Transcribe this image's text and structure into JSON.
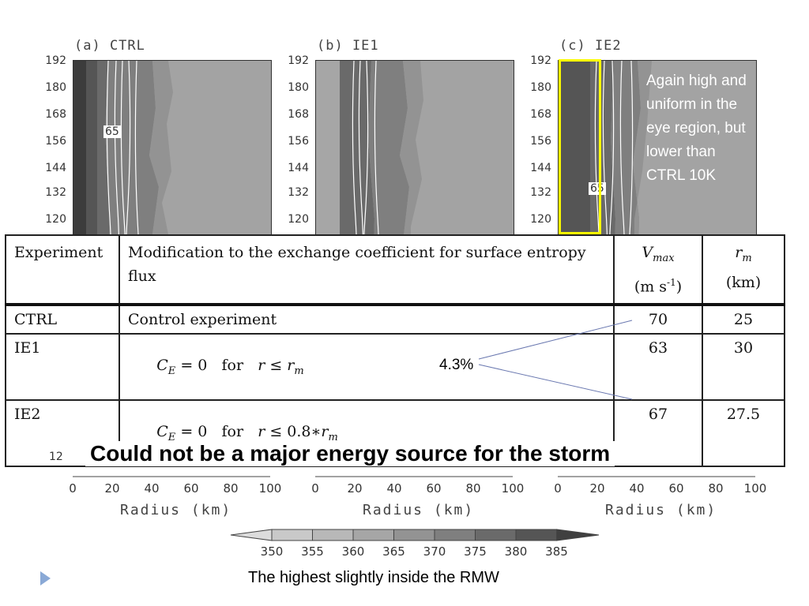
{
  "panels": [
    {
      "title": "(a) CTRL",
      "contour_label": "65"
    },
    {
      "title": "(b) IE1"
    },
    {
      "title": "(c) IE2",
      "contour_label": "65"
    }
  ],
  "y_ticks": [
    "192",
    "180",
    "168",
    "156",
    "144",
    "132",
    "120"
  ],
  "bottom_partial_tick": "12",
  "x_ticks": [
    "0",
    "20",
    "40",
    "60",
    "80",
    "100"
  ],
  "x_label": "Radius (km)",
  "callout": "Again high and uniform in the eye region, but lower than CTRL 10K",
  "table": {
    "headers": {
      "experiment": "Experiment",
      "modification_line1": "Modification to the exchange coefficient for surface entropy",
      "modification_line2": "flux",
      "vmax_symbol": "V",
      "vmax_sub": "max",
      "vmax_unit": "(m s",
      "vmax_unit_sup": "-1",
      "vmax_unit_end": ")",
      "rm_symbol": "r",
      "rm_sub": "m",
      "rm_unit": "(km)"
    },
    "rows": [
      {
        "experiment": "CTRL",
        "modification": "Control experiment",
        "vmax": "70",
        "rm": "25"
      },
      {
        "experiment": "IE1",
        "ce": "C",
        "ce_sub": "E",
        "mod_eq": " = 0   for   ",
        "mod_var": "r",
        "mod_op": " ≤ ",
        "mod_rhs": "r",
        "mod_rhs_sub": "m",
        "vmax": "63",
        "rm": "30"
      },
      {
        "experiment": "IE2",
        "ce": "C",
        "ce_sub": "E",
        "mod_eq": " = 0   for   ",
        "mod_var": "r",
        "mod_op": " ≤ 0.8∗",
        "mod_rhs": "r",
        "mod_rhs_sub": "m",
        "vmax": "67",
        "rm": "27.5"
      }
    ]
  },
  "percent_annotation": "4.3%",
  "headline": "Could not be a major energy source for the storm",
  "colorbar": {
    "labels": [
      "350",
      "355",
      "360",
      "365",
      "370",
      "375",
      "380",
      "385"
    ],
    "colors": [
      "#c9c9c9",
      "#b8b8b8",
      "#a6a6a6",
      "#939393",
      "#7f7f7f",
      "#6a6a6a",
      "#555555",
      "#404040"
    ]
  },
  "caption": "The highest slightly inside the RMW"
}
